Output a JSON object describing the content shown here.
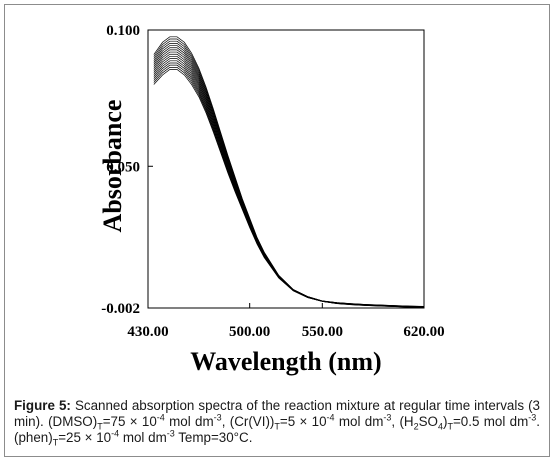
{
  "chart_data": {
    "type": "line",
    "xlabel": "Wavelength (nm)",
    "ylabel": "Absorbance",
    "xlim": [
      430,
      620
    ],
    "ylim": [
      -0.002,
      0.1
    ],
    "x_ticks": [
      "430.00",
      "500.00",
      "550.00",
      "620.00"
    ],
    "x_tick_values": [
      430,
      500,
      550,
      620
    ],
    "y_ticks": [
      "-0.002",
      "0.050",
      "0.100"
    ],
    "y_tick_values": [
      -0.002,
      0.05,
      0.1
    ],
    "grid": false,
    "series_count": 16,
    "first_spectrum": {
      "x": [
        434,
        440,
        445,
        450,
        455,
        460,
        465,
        470,
        475,
        480,
        485,
        490,
        495,
        500,
        505,
        510,
        520,
        530,
        540,
        550,
        560,
        570,
        580,
        590,
        600,
        610,
        620
      ],
      "y": [
        0.091,
        0.0955,
        0.0975,
        0.0975,
        0.0955,
        0.0915,
        0.086,
        0.079,
        0.071,
        0.0625,
        0.054,
        0.046,
        0.038,
        0.031,
        0.024,
        0.0185,
        0.01,
        0.0048,
        0.0022,
        0.0006,
        0.0,
        -0.0004,
        -0.0007,
        -0.0009,
        -0.0011,
        -0.0013,
        -0.0014
      ]
    },
    "last_spectrum": {
      "x": [
        434,
        440,
        445,
        450,
        455,
        460,
        465,
        470,
        475,
        480,
        485,
        490,
        495,
        500,
        505,
        510,
        520,
        530,
        540,
        550,
        560,
        570,
        580,
        590,
        600,
        610,
        620
      ],
      "y": [
        0.08,
        0.0835,
        0.0855,
        0.0855,
        0.0835,
        0.08,
        0.0755,
        0.0695,
        0.0625,
        0.055,
        0.0475,
        0.0405,
        0.034,
        0.0275,
        0.0215,
        0.0165,
        0.009,
        0.0043,
        0.0018,
        0.0004,
        -0.0004,
        -0.0008,
        -0.0011,
        -0.0013,
        -0.0015,
        -0.0017,
        -0.0018
      ]
    }
  },
  "caption": {
    "label": "Figure 5:",
    "text": "Scanned absorption spectra of the reaction mixture at regular time intervals (3 min). (DMSO)T=75 × 10-4 mol dm-3, (Cr(VI))T=5 × 10-4 mol dm-3, (H2SO4)T=0.5 mol dm-3. (phen)T=25 × 10-4 mol dm-3 Temp=30°C."
  }
}
